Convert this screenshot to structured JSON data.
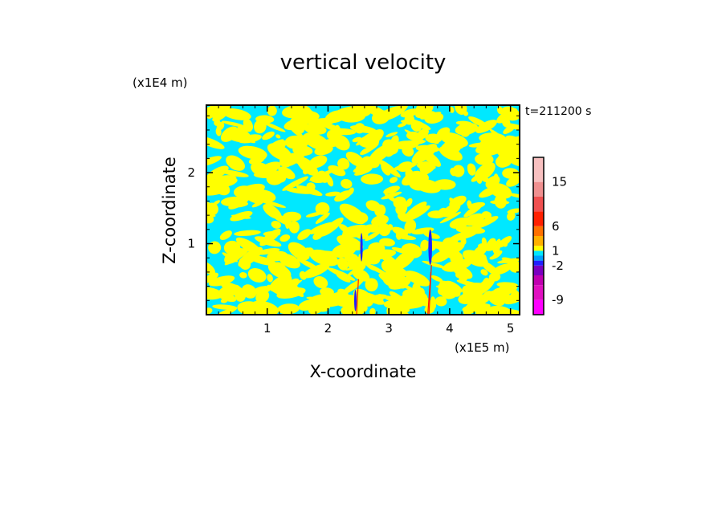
{
  "chart_data": {
    "type": "heatmap",
    "title": "vertical velocity",
    "xlabel": "X-coordinate",
    "ylabel": "Z-coordinate",
    "x_unit": "(x1E5 m)",
    "y_unit": "(x1E4 m)",
    "time_label": "t=211200 s",
    "xlim": [
      0,
      5.15
    ],
    "ylim": [
      0,
      2.95
    ],
    "x_ticks": [
      "1",
      "2",
      "3",
      "4",
      "5"
    ],
    "y_ticks": [
      "1",
      "2"
    ],
    "colorbar": {
      "tick_labels": [
        "15",
        "6",
        "1",
        "-2",
        "-9"
      ],
      "levels": [
        -12,
        -9,
        -6,
        -4,
        -2,
        -1,
        0,
        1,
        2,
        4,
        6,
        9,
        12,
        15,
        20
      ],
      "colors": [
        "#ff00ff",
        "#e010c0",
        "#c000b0",
        "#7a00c0",
        "#2020ff",
        "#00a0ff",
        "#00e8ff",
        "#ffff00",
        "#ffb000",
        "#ff7000",
        "#ff2000",
        "#f05050",
        "#f09090",
        "#f8c0c0",
        "#fff0f0"
      ]
    },
    "regions": {
      "background": "#00e8ff",
      "updraft": "#ffff00",
      "downdraft_core": "#2020ff",
      "strong_updraft": "#ff2000"
    },
    "features": [
      {
        "kind": "downdraft_core",
        "x": 3.68,
        "z": 0.95,
        "w": 0.06,
        "h": 0.5
      },
      {
        "kind": "downdraft_core",
        "x": 2.55,
        "z": 0.95,
        "w": 0.03,
        "h": 0.4
      },
      {
        "kind": "downdraft_core",
        "x": 2.45,
        "z": 0.2,
        "w": 0.02,
        "h": 0.3
      }
    ]
  },
  "colors": {
    "axis": "#000000"
  }
}
